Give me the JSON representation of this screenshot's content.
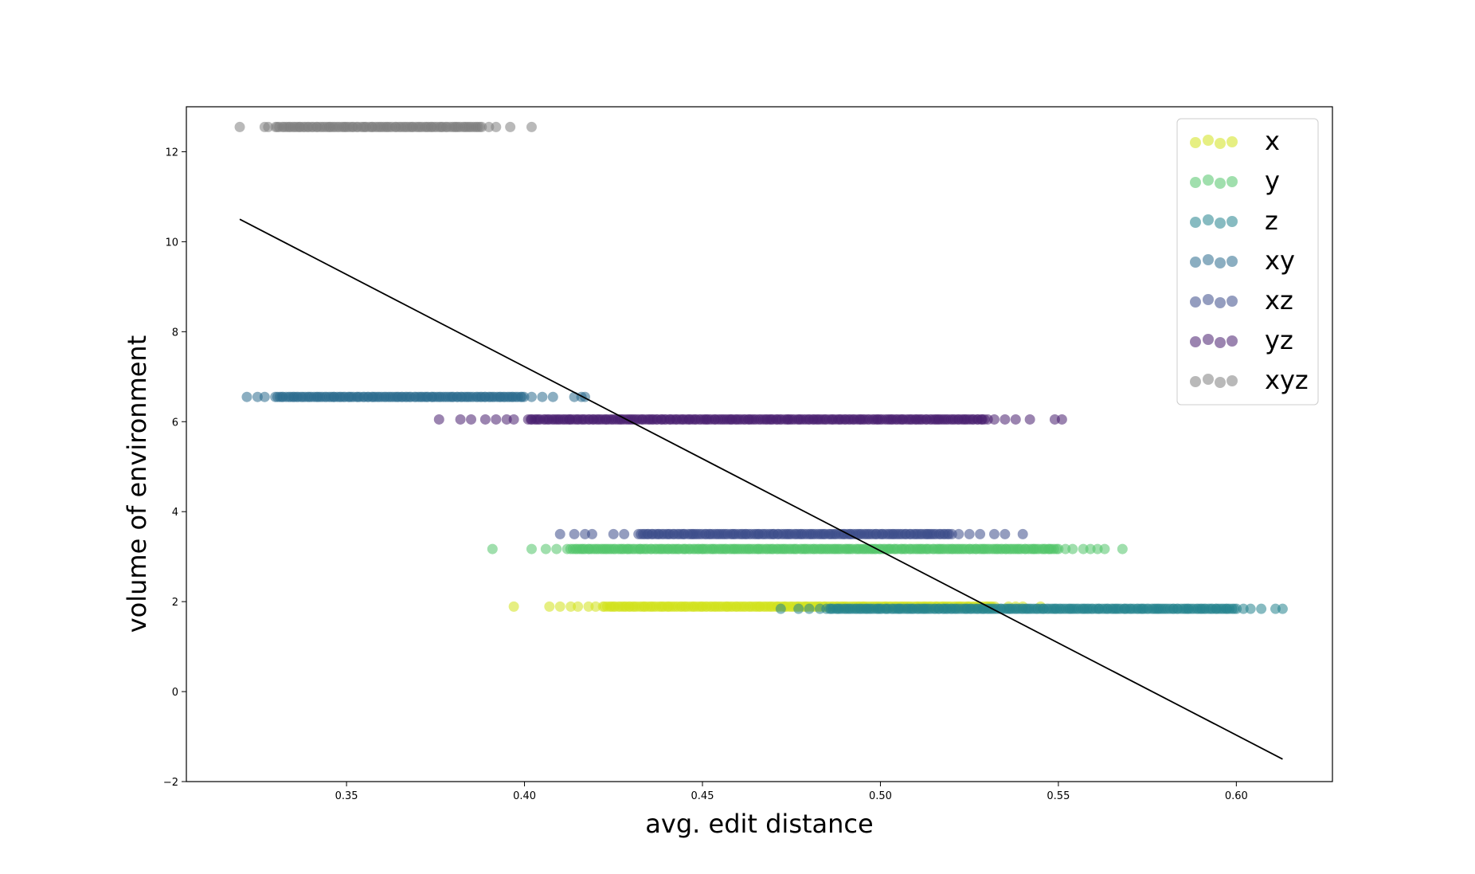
{
  "chart_data": {
    "type": "scatter",
    "title": "",
    "xlabel": "avg. edit distance",
    "ylabel": "volume of environment",
    "xlim": [
      0.305,
      0.627
    ],
    "ylim": [
      -2,
      13.0
    ],
    "xticks": [
      0.35,
      0.4,
      0.45,
      0.5,
      0.55,
      0.6
    ],
    "xtick_labels": [
      "0.35",
      "0.40",
      "0.45",
      "0.50",
      "0.55",
      "0.60"
    ],
    "yticks": [
      -2,
      0,
      2,
      4,
      6,
      8,
      10,
      12
    ],
    "ytick_labels": [
      "−2",
      "0",
      "2",
      "4",
      "6",
      "8",
      "10",
      "12"
    ],
    "grid": false,
    "legend_position": "top-right",
    "series": [
      {
        "name": "x",
        "color": "#d2e21b",
        "y": 1.89,
        "x_range": [
          0.397,
          0.545
        ],
        "x_dense": [
          0.422,
          0.532
        ],
        "x_outliers": [
          0.397,
          0.407,
          0.41,
          0.413,
          0.415,
          0.418,
          0.42,
          0.536,
          0.538,
          0.54,
          0.545
        ]
      },
      {
        "name": "y",
        "color": "#52c569",
        "y": 3.17,
        "x_range": [
          0.391,
          0.568
        ],
        "x_dense": [
          0.413,
          0.55
        ],
        "x_outliers": [
          0.391,
          0.402,
          0.406,
          0.409,
          0.412,
          0.552,
          0.554,
          0.557,
          0.559,
          0.561,
          0.563,
          0.568
        ]
      },
      {
        "name": "z",
        "color": "#25838e",
        "y": 1.84,
        "x_range": [
          0.472,
          0.613
        ],
        "x_dense": [
          0.485,
          0.6
        ],
        "x_outliers": [
          0.472,
          0.477,
          0.48,
          0.483,
          0.602,
          0.604,
          0.607,
          0.611,
          0.613
        ]
      },
      {
        "name": "xy",
        "color": "#2c6b8e",
        "y": 6.55,
        "x_range": [
          0.322,
          0.417
        ],
        "x_dense": [
          0.33,
          0.4
        ],
        "x_outliers": [
          0.322,
          0.325,
          0.327,
          0.402,
          0.405,
          0.408,
          0.414,
          0.416,
          0.417
        ]
      },
      {
        "name": "xz",
        "color": "#3d4d8a",
        "y": 3.5,
        "x_range": [
          0.41,
          0.54
        ],
        "x_dense": [
          0.432,
          0.52
        ],
        "x_outliers": [
          0.41,
          0.414,
          0.417,
          0.419,
          0.425,
          0.428,
          0.522,
          0.525,
          0.528,
          0.532,
          0.535,
          0.54
        ]
      },
      {
        "name": "yz",
        "color": "#481f70",
        "y": 6.05,
        "x_range": [
          0.376,
          0.551
        ],
        "x_dense": [
          0.401,
          0.53
        ],
        "x_outliers": [
          0.376,
          0.382,
          0.385,
          0.389,
          0.392,
          0.395,
          0.397,
          0.532,
          0.535,
          0.538,
          0.542,
          0.549,
          0.551
        ]
      },
      {
        "name": "xyz",
        "color": "#7f7f7f",
        "y": 12.55,
        "x_range": [
          0.32,
          0.402
        ],
        "x_dense": [
          0.33,
          0.388
        ],
        "x_outliers": [
          0.32,
          0.327,
          0.328,
          0.39,
          0.392,
          0.396,
          0.402
        ]
      }
    ],
    "fit_line": {
      "color": "#000000",
      "x": [
        0.32,
        0.613
      ],
      "y": [
        10.5,
        -1.5
      ]
    }
  }
}
